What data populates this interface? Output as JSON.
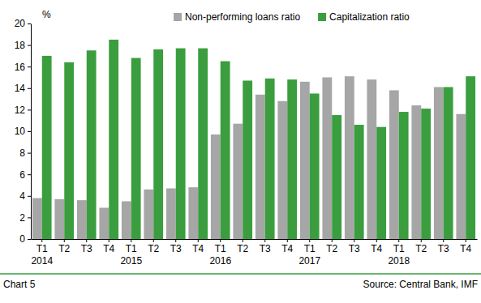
{
  "chart_data": {
    "type": "bar",
    "y_label": "%",
    "categories": [
      "T1\n2014",
      "T2",
      "T3",
      "T4",
      "T1\n2015",
      "T2",
      "T3",
      "T4",
      "T1\n2016",
      "T2",
      "T3",
      "T4",
      "T1\n2017",
      "T2",
      "T3",
      "T4",
      "T1\n2018",
      "T2",
      "T3",
      "T4"
    ],
    "series": [
      {
        "name": "Non-performing loans ratio",
        "color": "#a6a6a6",
        "values": [
          3.8,
          3.7,
          3.6,
          2.9,
          3.5,
          4.6,
          4.7,
          4.8,
          9.7,
          10.7,
          13.4,
          12.8,
          14.6,
          15.0,
          15.1,
          14.8,
          13.8,
          12.4,
          14.1,
          11.6
        ]
      },
      {
        "name": "Capitalization ratio",
        "color": "#3a9e3f",
        "values": [
          17.0,
          16.4,
          17.5,
          18.5,
          16.8,
          17.6,
          17.7,
          17.7,
          16.5,
          14.7,
          14.9,
          14.8,
          13.5,
          11.5,
          10.6,
          10.4,
          11.8,
          12.1,
          14.1,
          15.1
        ]
      }
    ],
    "ylim": [
      0,
      20
    ],
    "yticks": [
      0,
      2,
      4,
      6,
      8,
      10,
      12,
      14,
      16,
      18,
      20
    ],
    "grid": false,
    "legend": "top",
    "caption": "Chart 5",
    "source": "Source: Central Bank, IMF"
  }
}
